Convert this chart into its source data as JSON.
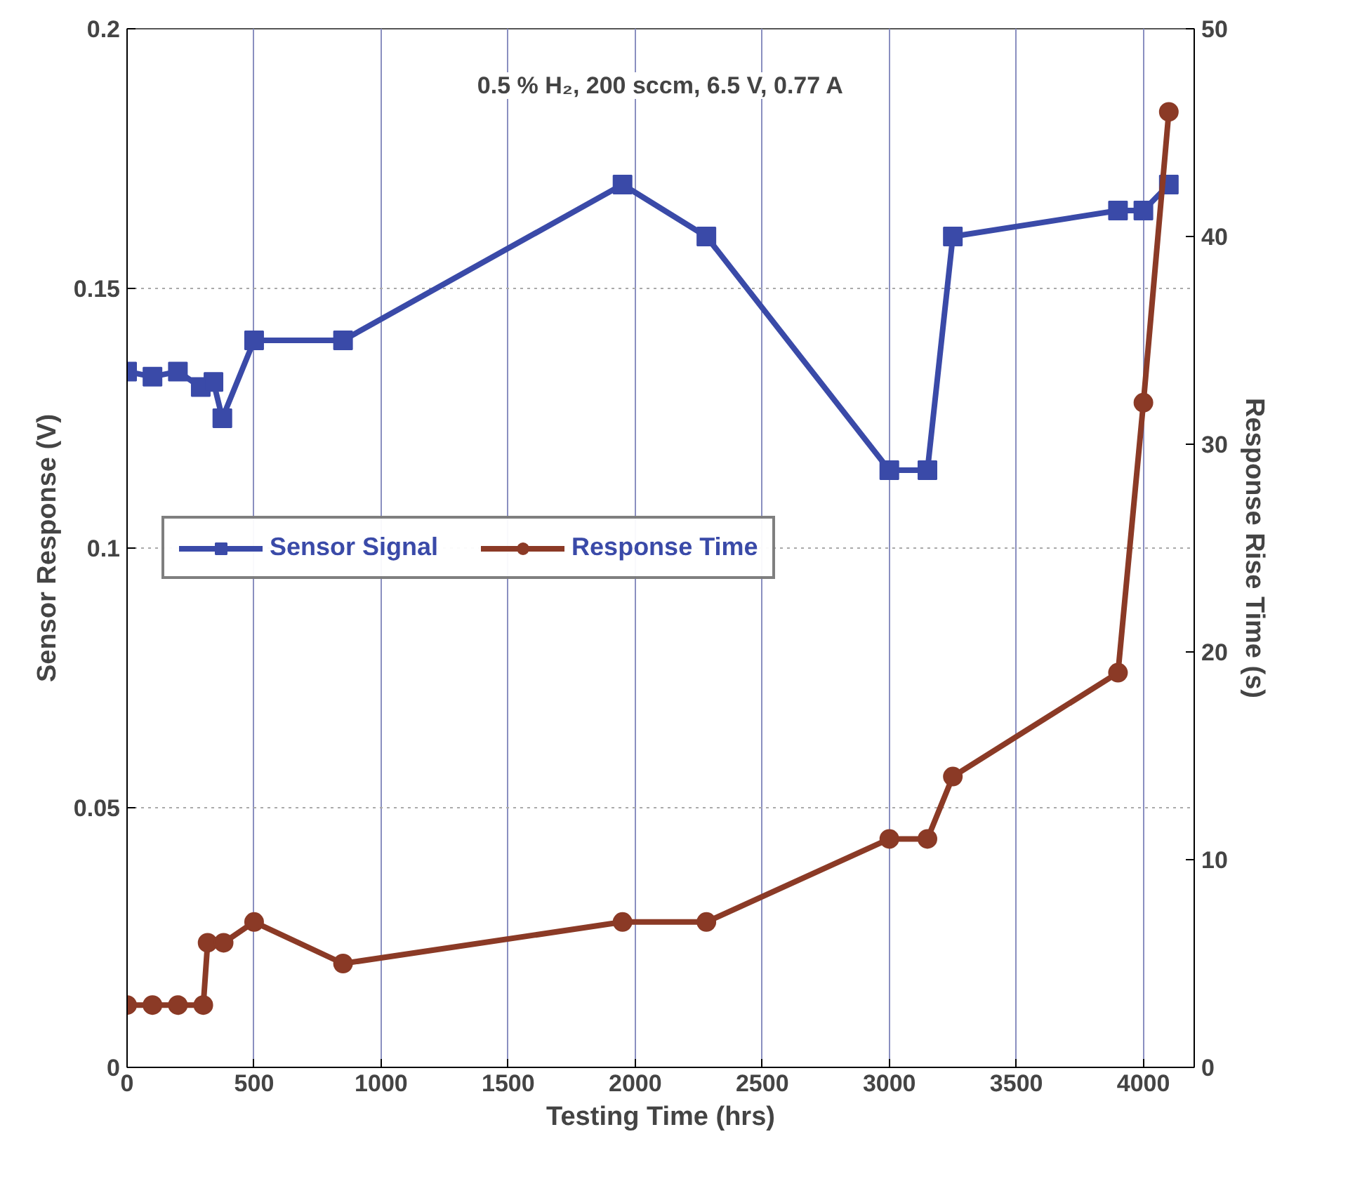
{
  "chart_data": {
    "type": "line",
    "xlabel": "Testing Time (hrs)",
    "ylabel": "Sensor Response (V)",
    "y2label": "Response Rise Time (s)",
    "annotations": [
      "0.5 % H₂, 200 sccm, 6.5 V, 0.77 A"
    ],
    "xlim": [
      0,
      4200
    ],
    "xticks": [
      0,
      500,
      1000,
      1500,
      2000,
      2500,
      3000,
      3500,
      4000
    ],
    "ylim": [
      0,
      0.2
    ],
    "yticks": [
      0,
      {
        "value": 0.05,
        "label": "0.05"
      },
      {
        "value": 0.1,
        "label": "0.1"
      },
      {
        "value": 0.15,
        "label": "0.15"
      },
      {
        "value": 0.2,
        "label": "0.2"
      }
    ],
    "y2lim": [
      0,
      50
    ],
    "y2ticks": [
      0,
      10,
      20,
      30,
      40,
      50
    ],
    "grid": true,
    "legend": "left",
    "line_style": "solid",
    "series": [
      {
        "name": "Sensor Signal",
        "color": "#3a4aa8",
        "marker": "square",
        "x": [
          0,
          100,
          200,
          290,
          340,
          375,
          500,
          850,
          1950,
          2280,
          3000,
          3150,
          3250,
          3900,
          4000,
          4100
        ],
        "values": [
          0.134,
          0.133,
          0.134,
          0.131,
          0.132,
          0.125,
          0.14,
          0.14,
          0.17,
          0.16,
          0.115,
          0.115,
          0.16,
          0.165,
          0.165,
          0.17
        ]
      },
      {
        "name": "Response Time",
        "color": "#8b3a26",
        "marker": "circle",
        "axis": "y2",
        "x": [
          0,
          100,
          200,
          300,
          317,
          380,
          500,
          850,
          1950,
          2280,
          3000,
          3150,
          3250,
          3900,
          4000,
          4100
        ],
        "values": [
          3,
          3,
          3,
          3,
          6,
          6,
          7,
          5,
          7,
          7,
          11,
          11,
          14,
          19,
          32,
          46
        ]
      }
    ]
  }
}
